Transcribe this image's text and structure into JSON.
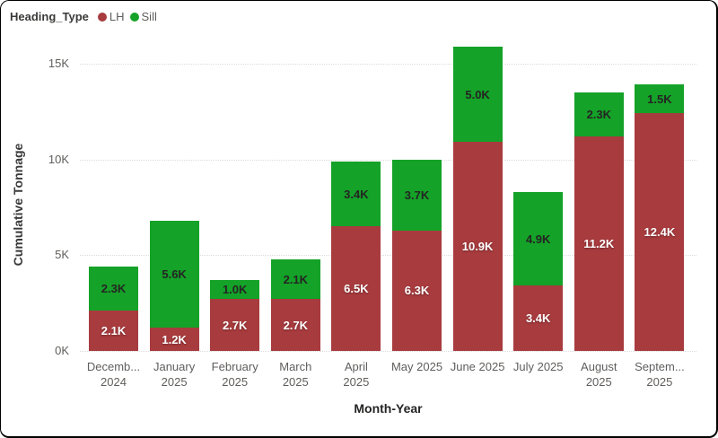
{
  "window": {
    "background": "#ffffff",
    "frame_border_color": "#000000"
  },
  "legend": {
    "title": "Heading_Type",
    "items": [
      {
        "label": "LH",
        "color": "#a83b3e"
      },
      {
        "label": "Sill",
        "color": "#14a228"
      }
    ]
  },
  "chart_data": {
    "type": "bar",
    "stacked": true,
    "title": "",
    "xlabel": "Month-Year",
    "ylabel": "Cumulative Tonnage",
    "ylim": [
      0,
      16000
    ],
    "grid": "horizontal-dotted",
    "gridline_color": "#dcdcdc",
    "legend_position": "top-left",
    "yticks": [
      {
        "value": 0,
        "label": "0K"
      },
      {
        "value": 5000,
        "label": "5K"
      },
      {
        "value": 10000,
        "label": "10K"
      },
      {
        "value": 15000,
        "label": "15K"
      }
    ],
    "categories": [
      "Decemb... 2024",
      "January 2025",
      "February 2025",
      "March 2025",
      "April 2025",
      "May 2025",
      "June 2025",
      "July 2025",
      "August 2025",
      "Septem... 2025"
    ],
    "category_label_lines": [
      [
        "Decemb...",
        "2024"
      ],
      [
        "January",
        "2025"
      ],
      [
        "February",
        "2025"
      ],
      [
        "March",
        "2025"
      ],
      [
        "April",
        "2025"
      ],
      [
        "May 2025"
      ],
      [
        "June 2025"
      ],
      [
        "July 2025"
      ],
      [
        "August",
        "2025"
      ],
      [
        "Septem...",
        "2025"
      ]
    ],
    "series": [
      {
        "name": "LH",
        "color": "#a83b3e",
        "label_style": "light",
        "values": [
          2100,
          1200,
          2700,
          2700,
          6500,
          6300,
          10900,
          3400,
          11200,
          12400
        ],
        "labels": [
          "2.1K",
          "1.2K",
          "2.7K",
          "2.7K",
          "6.5K",
          "6.3K",
          "10.9K",
          "3.4K",
          "11.2K",
          "12.4K"
        ]
      },
      {
        "name": "Sill",
        "color": "#14a228",
        "label_style": "dark",
        "values": [
          2300,
          5600,
          1000,
          2100,
          3400,
          3700,
          5000,
          4900,
          2300,
          1500
        ],
        "labels": [
          "2.3K",
          "5.6K",
          "1.0K",
          "2.1K",
          "3.4K",
          "3.7K",
          "5.0K",
          "4.9K",
          "2.3K",
          "1.5K"
        ]
      }
    ]
  }
}
